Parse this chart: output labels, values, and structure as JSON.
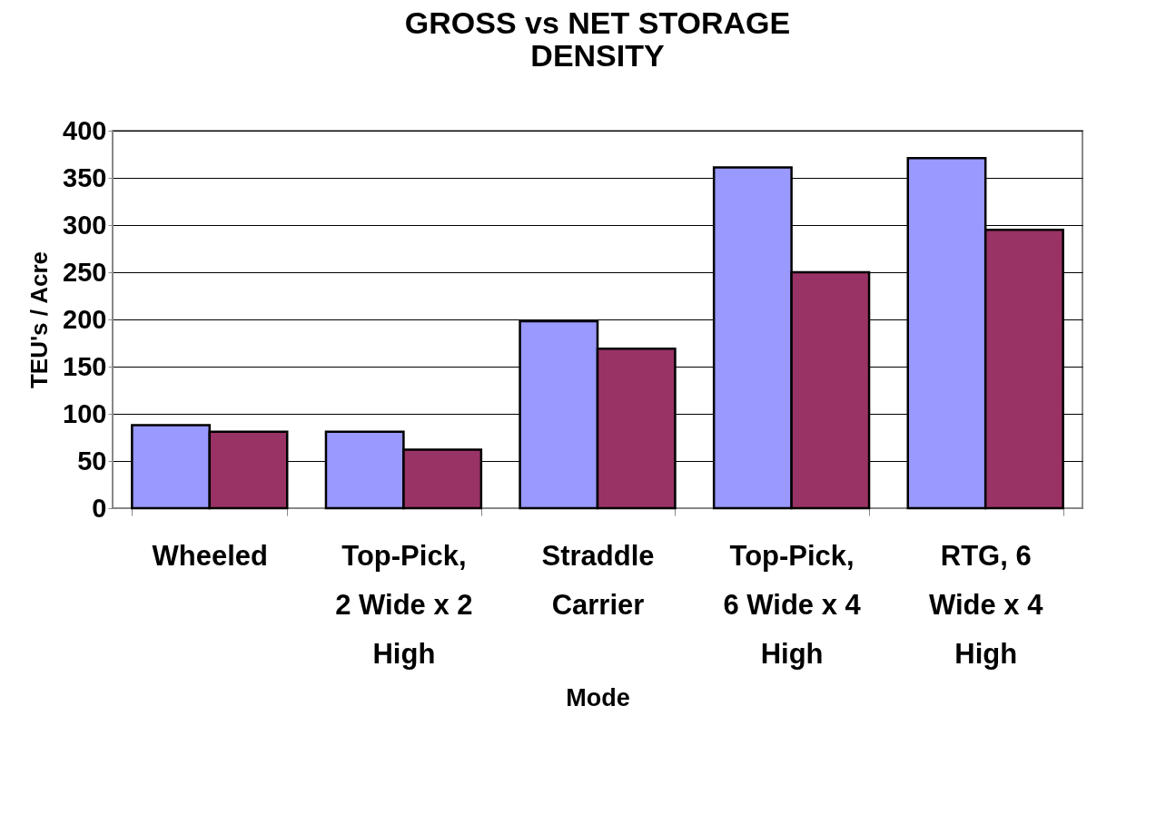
{
  "chart_data": {
    "type": "bar",
    "title": "GROSS vs NET STORAGE DENSITY",
    "xlabel": "Mode",
    "ylabel": "TEU's / Acre",
    "categories": [
      "Wheeled",
      "Top-Pick, 2 Wide x 2 High",
      "Straddle Carrier",
      "Top-Pick, 6 Wide x 4 High",
      "RTG, 6 Wide x 4 High"
    ],
    "series": [
      {
        "color": "#9999ff",
        "values": [
          88,
          81,
          198,
          361,
          371
        ]
      },
      {
        "color": "#993366",
        "values": [
          81,
          62,
          169,
          250,
          295
        ]
      }
    ],
    "ylim": [
      0,
      400
    ],
    "yticks": [
      0,
      50,
      100,
      150,
      200,
      250,
      300,
      350,
      400
    ],
    "grid": "y",
    "legend": false
  }
}
